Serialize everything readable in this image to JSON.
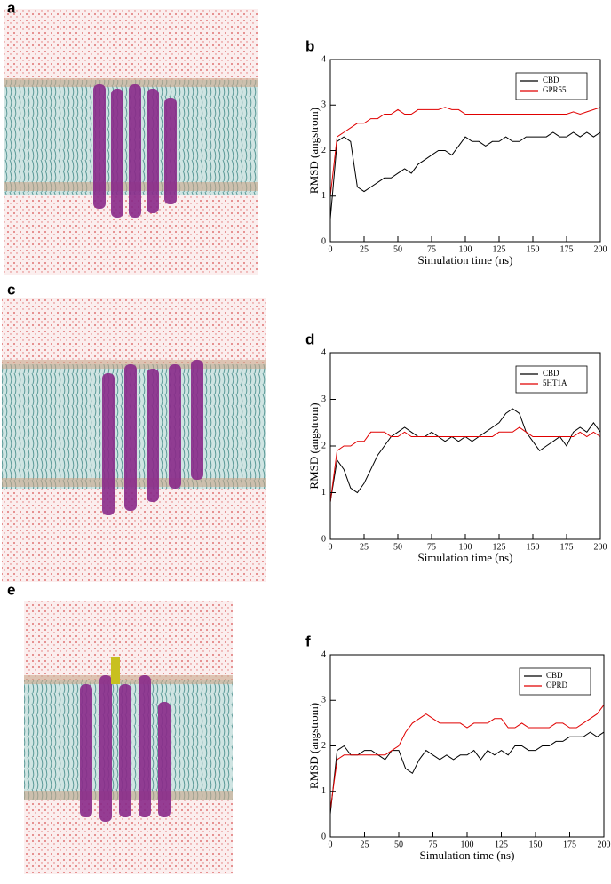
{
  "panels": [
    {
      "label": "a"
    },
    {
      "label": "c"
    },
    {
      "label": "e"
    }
  ],
  "chart_data": [
    {
      "type": "line",
      "panel_label": "b",
      "xlabel": "Simulation time (ns)",
      "ylabel": "RMSD (angstrom)",
      "xlim": [
        0,
        200
      ],
      "ylim": [
        0,
        4
      ],
      "xticks": [
        0,
        25,
        50,
        75,
        100,
        125,
        150,
        175,
        200
      ],
      "yticks": [
        0,
        1,
        2,
        3,
        4
      ],
      "legend": "upper right",
      "x": [
        0,
        5,
        10,
        15,
        20,
        25,
        30,
        35,
        40,
        45,
        50,
        55,
        60,
        65,
        70,
        75,
        80,
        85,
        90,
        95,
        100,
        105,
        110,
        115,
        120,
        125,
        130,
        135,
        140,
        145,
        150,
        155,
        160,
        165,
        170,
        175,
        180,
        185,
        190,
        195,
        200
      ],
      "series": [
        {
          "name": "CBD",
          "color": "#000000",
          "values": [
            0.5,
            2.2,
            2.3,
            2.2,
            1.2,
            1.1,
            1.2,
            1.3,
            1.4,
            1.4,
            1.5,
            1.6,
            1.5,
            1.7,
            1.8,
            1.9,
            2.0,
            2.0,
            1.9,
            2.1,
            2.3,
            2.2,
            2.2,
            2.1,
            2.2,
            2.2,
            2.3,
            2.2,
            2.2,
            2.3,
            2.3,
            2.3,
            2.3,
            2.4,
            2.3,
            2.3,
            2.4,
            2.3,
            2.4,
            2.3,
            2.4
          ]
        },
        {
          "name": "GPR55",
          "color": "#e00000",
          "values": [
            1.0,
            2.3,
            2.4,
            2.5,
            2.6,
            2.6,
            2.7,
            2.7,
            2.8,
            2.8,
            2.9,
            2.8,
            2.8,
            2.9,
            2.9,
            2.9,
            2.9,
            2.95,
            2.9,
            2.9,
            2.8,
            2.8,
            2.8,
            2.8,
            2.8,
            2.8,
            2.8,
            2.8,
            2.8,
            2.8,
            2.8,
            2.8,
            2.8,
            2.8,
            2.8,
            2.8,
            2.85,
            2.8,
            2.85,
            2.9,
            2.95
          ]
        }
      ]
    },
    {
      "type": "line",
      "panel_label": "d",
      "xlabel": "Simulation time (ns)",
      "ylabel": "RMSD (angstrom)",
      "xlim": [
        0,
        200
      ],
      "ylim": [
        0,
        4
      ],
      "xticks": [
        0,
        25,
        50,
        75,
        100,
        125,
        150,
        175,
        200
      ],
      "yticks": [
        0,
        1,
        2,
        3,
        4
      ],
      "legend": "upper right",
      "x": [
        0,
        5,
        10,
        15,
        20,
        25,
        30,
        35,
        40,
        45,
        50,
        55,
        60,
        65,
        70,
        75,
        80,
        85,
        90,
        95,
        100,
        105,
        110,
        115,
        120,
        125,
        130,
        135,
        140,
        145,
        150,
        155,
        160,
        165,
        170,
        175,
        180,
        185,
        190,
        195,
        200
      ],
      "series": [
        {
          "name": "CBD",
          "color": "#000000",
          "values": [
            0.8,
            1.7,
            1.5,
            1.1,
            1.0,
            1.2,
            1.5,
            1.8,
            2.0,
            2.2,
            2.3,
            2.4,
            2.3,
            2.2,
            2.2,
            2.3,
            2.2,
            2.1,
            2.2,
            2.1,
            2.2,
            2.1,
            2.2,
            2.3,
            2.4,
            2.5,
            2.7,
            2.8,
            2.7,
            2.3,
            2.1,
            1.9,
            2.0,
            2.1,
            2.2,
            2.0,
            2.3,
            2.4,
            2.3,
            2.5,
            2.3
          ]
        },
        {
          "name": "5HT1A",
          "color": "#e00000",
          "values": [
            0.8,
            1.9,
            2.0,
            2.0,
            2.1,
            2.1,
            2.3,
            2.3,
            2.3,
            2.2,
            2.2,
            2.3,
            2.2,
            2.2,
            2.2,
            2.2,
            2.2,
            2.2,
            2.2,
            2.2,
            2.2,
            2.2,
            2.2,
            2.2,
            2.2,
            2.3,
            2.3,
            2.3,
            2.4,
            2.3,
            2.2,
            2.2,
            2.2,
            2.2,
            2.2,
            2.2,
            2.2,
            2.3,
            2.2,
            2.3,
            2.2
          ]
        }
      ]
    },
    {
      "type": "line",
      "panel_label": "f",
      "xlabel": "Simulation time (ns)",
      "ylabel": "RMSD (angstrom)",
      "xlim": [
        0,
        200
      ],
      "ylim": [
        0,
        4
      ],
      "xticks": [
        0,
        25,
        50,
        75,
        100,
        125,
        150,
        175,
        200
      ],
      "yticks": [
        0,
        1,
        2,
        3,
        4
      ],
      "legend": "upper right",
      "x": [
        0,
        5,
        10,
        15,
        20,
        25,
        30,
        35,
        40,
        45,
        50,
        55,
        60,
        65,
        70,
        75,
        80,
        85,
        90,
        95,
        100,
        105,
        110,
        115,
        120,
        125,
        130,
        135,
        140,
        145,
        150,
        155,
        160,
        165,
        170,
        175,
        180,
        185,
        190,
        195,
        200
      ],
      "series": [
        {
          "name": "CBD",
          "color": "#000000",
          "values": [
            0.5,
            1.9,
            2.0,
            1.8,
            1.8,
            1.9,
            1.9,
            1.8,
            1.7,
            1.9,
            1.9,
            1.5,
            1.4,
            1.7,
            1.9,
            1.8,
            1.7,
            1.8,
            1.7,
            1.8,
            1.8,
            1.9,
            1.7,
            1.9,
            1.8,
            1.9,
            1.8,
            2.0,
            2.0,
            1.9,
            1.9,
            2.0,
            2.0,
            2.1,
            2.1,
            2.2,
            2.2,
            2.2,
            2.3,
            2.2,
            2.3
          ]
        },
        {
          "name": "OPRD",
          "color": "#e00000",
          "values": [
            0.6,
            1.7,
            1.8,
            1.8,
            1.8,
            1.8,
            1.8,
            1.8,
            1.8,
            1.9,
            2.0,
            2.3,
            2.5,
            2.6,
            2.7,
            2.6,
            2.5,
            2.5,
            2.5,
            2.5,
            2.4,
            2.5,
            2.5,
            2.5,
            2.6,
            2.6,
            2.4,
            2.4,
            2.5,
            2.4,
            2.4,
            2.4,
            2.4,
            2.5,
            2.5,
            2.4,
            2.4,
            2.5,
            2.6,
            2.7,
            2.9
          ]
        }
      ]
    }
  ]
}
